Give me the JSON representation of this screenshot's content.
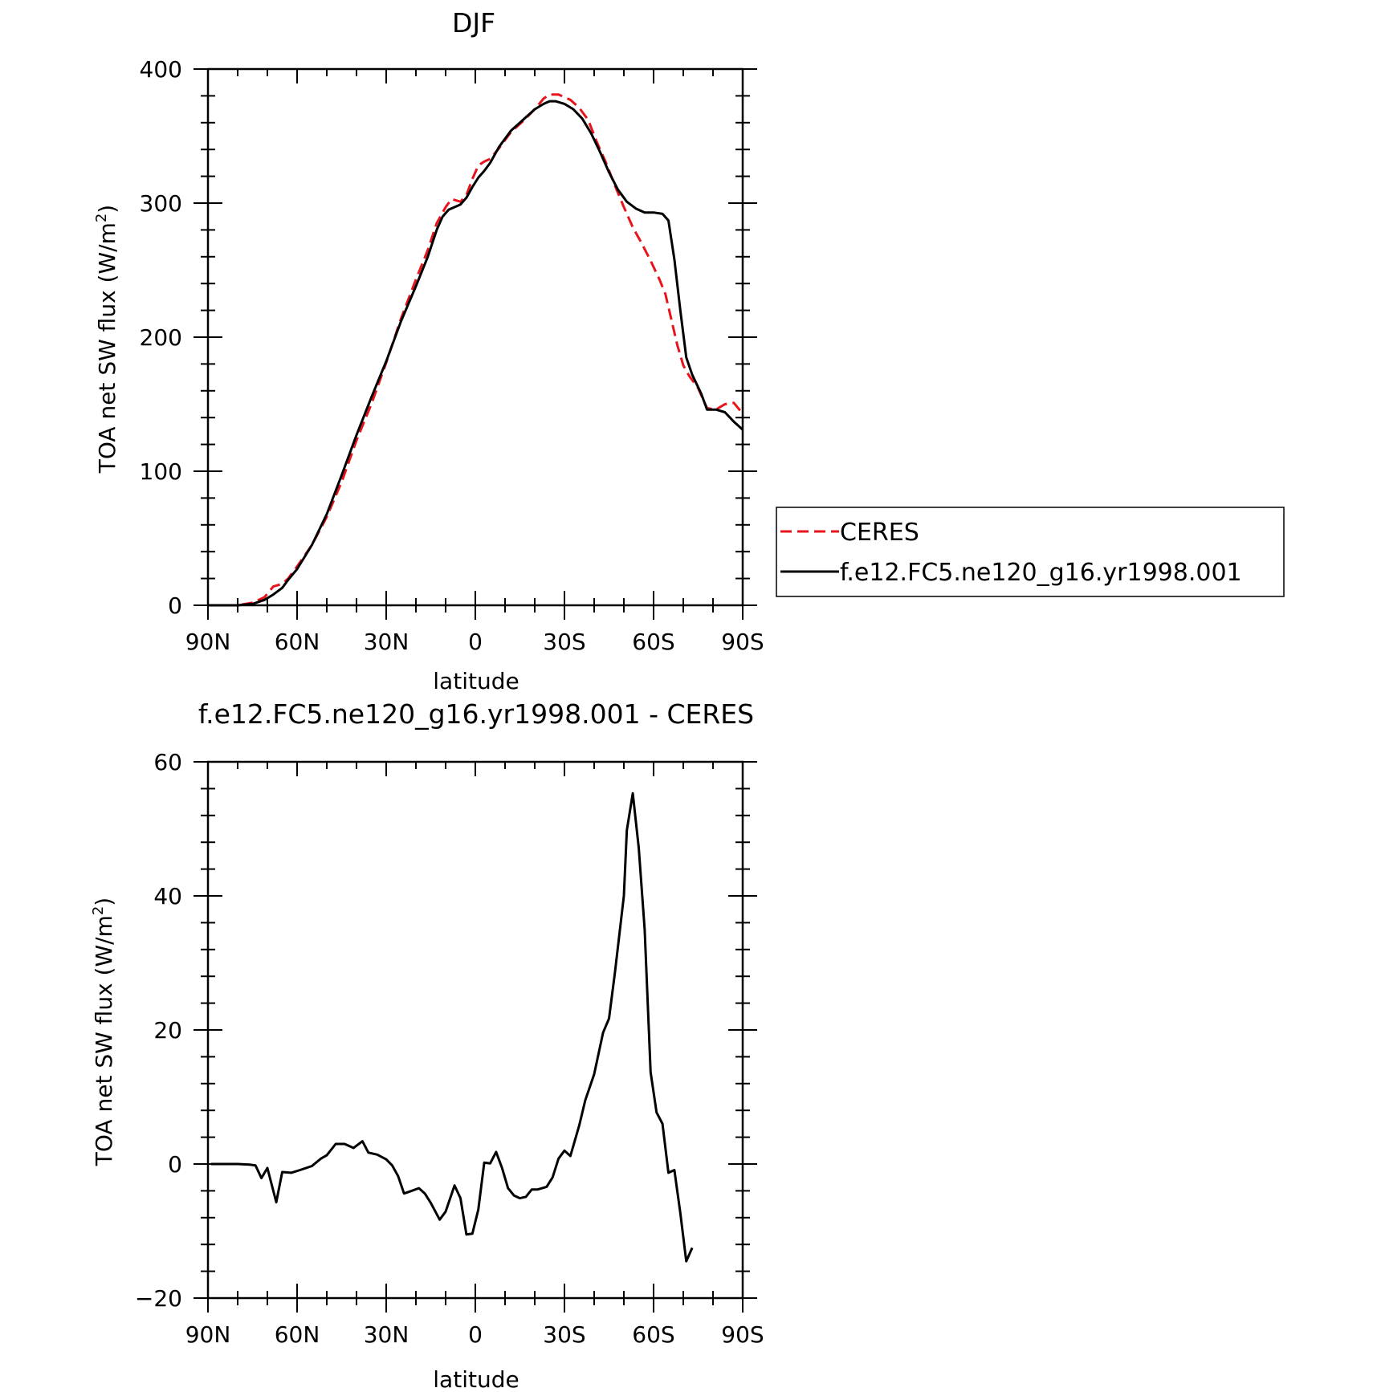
{
  "chart_data": [
    {
      "type": "line",
      "title": "DJF",
      "xlabel": "latitude",
      "ylabel_main": "TOA net SW flux (W/m",
      "ylabel_sup": "2",
      "ylabel_close": ")",
      "xlim": [
        -90,
        90
      ],
      "ylim": [
        0,
        400
      ],
      "x_ticks": [
        {
          "value": -90,
          "label": "90N"
        },
        {
          "value": -60,
          "label": "60N"
        },
        {
          "value": -30,
          "label": "30N"
        },
        {
          "value": 0,
          "label": "0"
        },
        {
          "value": 30,
          "label": "30S"
        },
        {
          "value": 60,
          "label": "60S"
        },
        {
          "value": 90,
          "label": "90S"
        }
      ],
      "y_ticks": [
        {
          "value": 0,
          "label": "0"
        },
        {
          "value": 100,
          "label": "100"
        },
        {
          "value": 200,
          "label": "200"
        },
        {
          "value": 300,
          "label": "300"
        },
        {
          "value": 400,
          "label": "400"
        }
      ],
      "legend": {
        "placement": "right"
      },
      "series": [
        {
          "name": "CERES",
          "color": "#e8141c",
          "dash": "dashed",
          "points": [
            [
              -90,
              0
            ],
            [
              -85,
              0
            ],
            [
              -80,
              0
            ],
            [
              -75,
              2
            ],
            [
              -71,
              6
            ],
            [
              -68,
              14
            ],
            [
              -65,
              16
            ],
            [
              -63,
              20
            ],
            [
              -60,
              29
            ],
            [
              -55,
              45
            ],
            [
              -50,
              66
            ],
            [
              -45,
              92
            ],
            [
              -40,
              123
            ],
            [
              -35,
              150
            ],
            [
              -30,
              181
            ],
            [
              -25,
              214
            ],
            [
              -20,
              243
            ],
            [
              -16,
              265
            ],
            [
              -13,
              285
            ],
            [
              -10,
              297
            ],
            [
              -8,
              303
            ],
            [
              -5,
              301
            ],
            [
              -3,
              306
            ],
            [
              -1,
              318
            ],
            [
              1,
              328
            ],
            [
              3,
              331
            ],
            [
              5,
              333
            ],
            [
              8,
              341
            ],
            [
              12,
              353
            ],
            [
              16,
              361
            ],
            [
              20,
              370
            ],
            [
              23,
              378
            ],
            [
              25,
              381
            ],
            [
              28,
              381
            ],
            [
              32,
              377
            ],
            [
              35,
              371
            ],
            [
              38,
              362
            ],
            [
              41,
              345
            ],
            [
              44,
              330
            ],
            [
              47,
              313
            ],
            [
              50,
              297
            ],
            [
              53,
              282
            ],
            [
              56,
              270
            ],
            [
              59,
              257
            ],
            [
              62,
              243
            ],
            [
              64,
              232
            ],
            [
              66,
              213
            ],
            [
              68,
              194
            ],
            [
              70,
              179
            ],
            [
              72,
              171
            ],
            [
              75,
              162
            ],
            [
              78,
              147
            ],
            [
              81,
              146
            ],
            [
              84,
              150
            ],
            [
              87,
              151
            ],
            [
              90,
              143
            ]
          ]
        },
        {
          "name": "f.e12.FC5.ne120_g16.yr1998.001",
          "color": "#000000",
          "dash": "solid",
          "points": [
            [
              -90,
              0
            ],
            [
              -85,
              0
            ],
            [
              -80,
              0
            ],
            [
              -75,
              1
            ],
            [
              -71,
              4
            ],
            [
              -68,
              8
            ],
            [
              -65,
              13
            ],
            [
              -63,
              19
            ],
            [
              -60,
              27
            ],
            [
              -55,
              45
            ],
            [
              -50,
              68
            ],
            [
              -45,
              97
            ],
            [
              -40,
              127
            ],
            [
              -35,
              155
            ],
            [
              -30,
              182
            ],
            [
              -25,
              212
            ],
            [
              -20,
              238
            ],
            [
              -16,
              260
            ],
            [
              -13,
              280
            ],
            [
              -11,
              290
            ],
            [
              -9,
              295
            ],
            [
              -7,
              297
            ],
            [
              -5,
              299
            ],
            [
              -3,
              304
            ],
            [
              -1,
              312
            ],
            [
              1,
              319
            ],
            [
              3,
              324
            ],
            [
              5,
              330
            ],
            [
              8,
              342
            ],
            [
              12,
              354
            ],
            [
              16,
              362
            ],
            [
              20,
              370
            ],
            [
              23,
              374
            ],
            [
              25,
              376
            ],
            [
              27,
              376
            ],
            [
              30,
              374
            ],
            [
              33,
              370
            ],
            [
              36,
              363
            ],
            [
              39,
              352
            ],
            [
              42,
              338
            ],
            [
              45,
              323
            ],
            [
              48,
              310
            ],
            [
              51,
              301
            ],
            [
              54,
              296
            ],
            [
              57,
              293
            ],
            [
              60,
              293
            ],
            [
              63,
              292
            ],
            [
              65,
              287
            ],
            [
              67,
              258
            ],
            [
              69,
              220
            ],
            [
              71,
              185
            ],
            [
              73,
              172
            ],
            [
              76,
              158
            ],
            [
              78,
              146
            ],
            [
              81,
              146
            ],
            [
              84,
              144
            ],
            [
              87,
              137
            ],
            [
              90,
              131
            ]
          ]
        }
      ]
    },
    {
      "type": "line",
      "title": "f.e12.FC5.ne120_g16.yr1998.001 - CERES",
      "xlabel": "latitude",
      "ylabel_main": "TOA net SW flux (W/m",
      "ylabel_sup": "2",
      "ylabel_close": ")",
      "xlim": [
        -90,
        90
      ],
      "ylim": [
        -20,
        60
      ],
      "x_ticks": [
        {
          "value": -90,
          "label": "90N"
        },
        {
          "value": -60,
          "label": "60N"
        },
        {
          "value": -30,
          "label": "30N"
        },
        {
          "value": 0,
          "label": "0"
        },
        {
          "value": 30,
          "label": "30S"
        },
        {
          "value": 60,
          "label": "60S"
        },
        {
          "value": 90,
          "label": "90S"
        }
      ],
      "y_ticks": [
        {
          "value": -20,
          "label": "−20"
        },
        {
          "value": 0,
          "label": "0"
        },
        {
          "value": 20,
          "label": "20"
        },
        {
          "value": 40,
          "label": "40"
        },
        {
          "value": 60,
          "label": "60"
        }
      ],
      "series": [
        {
          "color": "#000000",
          "dash": "solid",
          "points": [
            [
              -89,
              0
            ],
            [
              -85,
              0
            ],
            [
              -80,
              0
            ],
            [
              -76,
              -0.1
            ],
            [
              -74,
              -0.2
            ],
            [
              -72,
              -2.1
            ],
            [
              -70,
              -0.6
            ],
            [
              -67,
              -5.7
            ],
            [
              -65,
              -1.2
            ],
            [
              -62,
              -1.3
            ],
            [
              -59,
              -0.9
            ],
            [
              -55,
              -0.3
            ],
            [
              -52,
              0.8
            ],
            [
              -50,
              1.3
            ],
            [
              -47,
              3.0
            ],
            [
              -44,
              3.0
            ],
            [
              -41,
              2.4
            ],
            [
              -38,
              3.4
            ],
            [
              -36,
              1.7
            ],
            [
              -33,
              1.4
            ],
            [
              -30,
              0.7
            ],
            [
              -28,
              -0.2
            ],
            [
              -26,
              -1.8
            ],
            [
              -24,
              -4.4
            ],
            [
              -22,
              -4.1
            ],
            [
              -19,
              -3.6
            ],
            [
              -17,
              -4.4
            ],
            [
              -15,
              -5.8
            ],
            [
              -12,
              -8.3
            ],
            [
              -10,
              -7.1
            ],
            [
              -7,
              -3.2
            ],
            [
              -5,
              -5.1
            ],
            [
              -3,
              -10.5
            ],
            [
              -1,
              -10.4
            ],
            [
              1,
              -6.8
            ],
            [
              3,
              0.2
            ],
            [
              5,
              0.1
            ],
            [
              7,
              1.8
            ],
            [
              9,
              -0.6
            ],
            [
              11,
              -3.6
            ],
            [
              13,
              -4.7
            ],
            [
              15,
              -5.1
            ],
            [
              17,
              -4.9
            ],
            [
              19,
              -3.8
            ],
            [
              21,
              -3.8
            ],
            [
              24,
              -3.4
            ],
            [
              26,
              -2.0
            ],
            [
              28,
              0.8
            ],
            [
              30,
              2.0
            ],
            [
              32,
              1.2
            ],
            [
              35,
              5.8
            ],
            [
              37,
              9.5
            ],
            [
              40,
              13.4
            ],
            [
              43,
              19.6
            ],
            [
              45,
              21.7
            ],
            [
              47,
              28.6
            ],
            [
              50,
              40.0
            ],
            [
              51,
              49.8
            ],
            [
              53,
              55.3
            ],
            [
              55,
              47.2
            ],
            [
              57,
              35.0
            ],
            [
              59,
              13.7
            ],
            [
              61,
              7.7
            ],
            [
              63,
              6.0
            ],
            [
              65,
              -1.3
            ],
            [
              67,
              -0.9
            ],
            [
              69,
              -7.3
            ],
            [
              71,
              -14.5
            ],
            [
              73,
              -12.5
            ]
          ]
        }
      ]
    }
  ]
}
